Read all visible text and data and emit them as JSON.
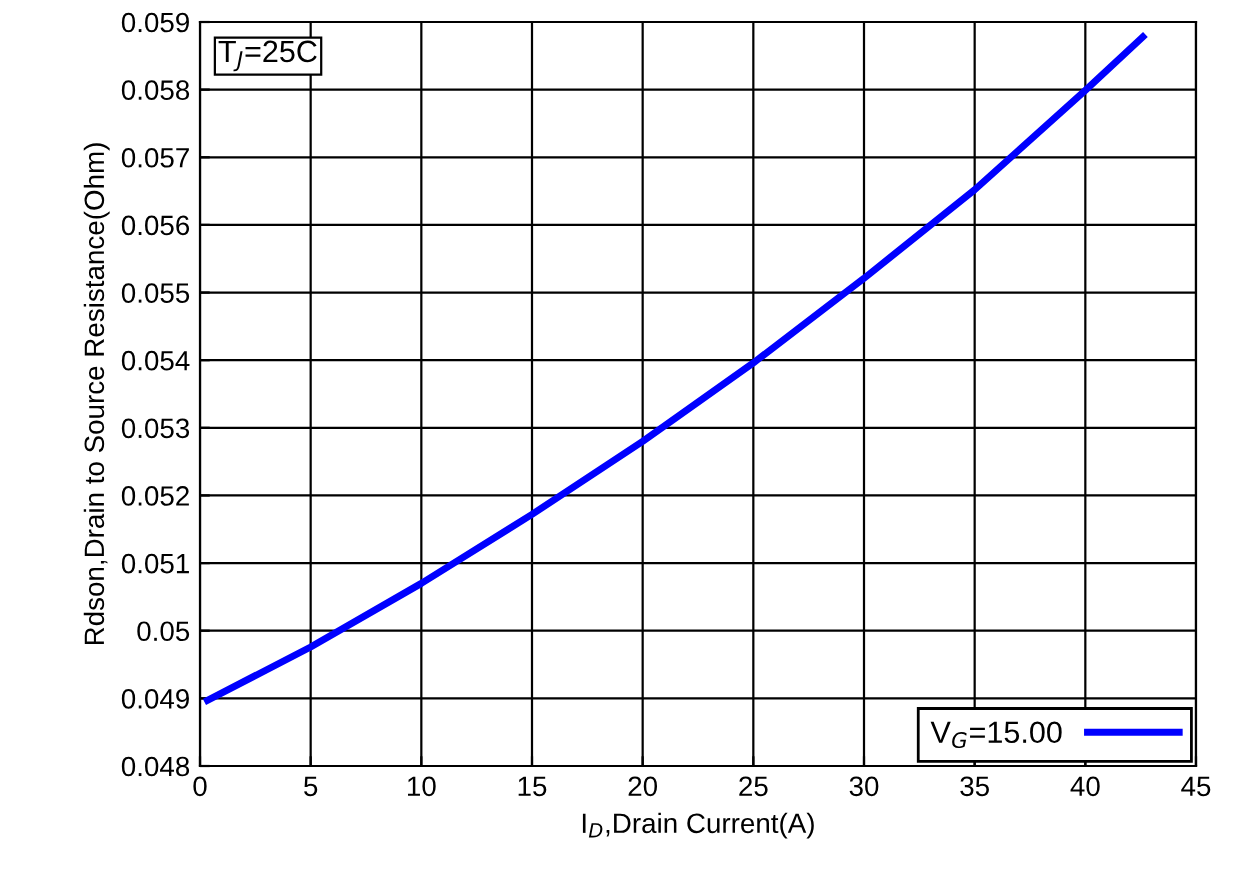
{
  "chart_data": {
    "type": "line",
    "xlabel": "I$_{D}$,Drain Current(A)",
    "ylabel": "Rdson,Drain to Source Resistance(Ohm)",
    "annotations": [
      "T$_{J}$=25C"
    ],
    "series": [
      {
        "name": "V$_{G}$=15.00",
        "color": "#0000ff",
        "x": [
          0.34,
          5,
          10,
          15,
          20,
          25,
          30,
          35,
          40,
          42.6
        ],
        "values": [
          0.04897,
          0.04976,
          0.0507,
          0.05172,
          0.0528,
          0.05396,
          0.05521,
          0.05652,
          0.05799,
          0.05878
        ]
      }
    ],
    "xlim": [
      0,
      45
    ],
    "xticks": [
      0,
      5,
      10,
      15,
      20,
      25,
      30,
      35,
      40,
      45
    ],
    "ylim": [
      0.048,
      0.059
    ],
    "yticks": [
      0.048,
      0.049,
      {
        "value": 0.05,
        "label": "0.05"
      },
      0.051,
      0.052,
      0.053,
      0.054,
      0.055,
      0.056,
      0.057,
      0.058,
      0.059
    ],
    "grid": true,
    "legend": "bottom right"
  }
}
